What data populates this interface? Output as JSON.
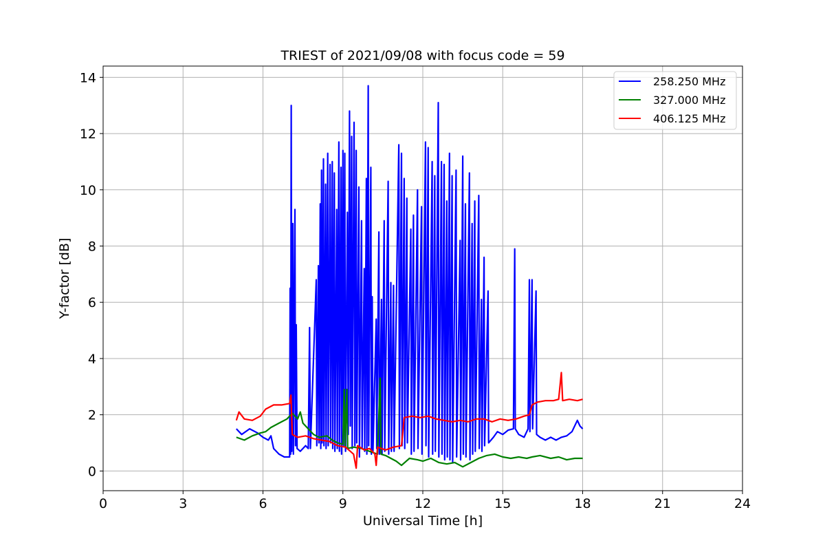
{
  "chart_data": {
    "type": "line",
    "title": "TRIEST of 2021/09/08 with focus code = 59",
    "xlabel": "Universal Time [h]",
    "ylabel": "Y-factor [dB]",
    "xlim": [
      0,
      24
    ],
    "ylim": [
      -0.7,
      14.4
    ],
    "xticks": [
      0,
      3,
      6,
      9,
      12,
      15,
      18,
      21,
      24
    ],
    "yticks": [
      0,
      2,
      4,
      6,
      8,
      10,
      12,
      14
    ],
    "grid": true,
    "legend_position": "top-right",
    "series": [
      {
        "name": "258.250 MHz",
        "color": "#0000ff",
        "points": [
          [
            5.0,
            1.5
          ],
          [
            5.2,
            1.3
          ],
          [
            5.5,
            1.5
          ],
          [
            5.8,
            1.35
          ],
          [
            6.0,
            1.2
          ],
          [
            6.2,
            1.1
          ],
          [
            6.3,
            1.25
          ],
          [
            6.4,
            0.8
          ],
          [
            6.6,
            0.6
          ],
          [
            6.8,
            0.5
          ],
          [
            7.0,
            0.5
          ],
          [
            7.02,
            6.5
          ],
          [
            7.04,
            0.6
          ],
          [
            7.06,
            13.0
          ],
          [
            7.08,
            0.7
          ],
          [
            7.12,
            8.8
          ],
          [
            7.14,
            0.6
          ],
          [
            7.2,
            9.3
          ],
          [
            7.22,
            0.9
          ],
          [
            7.25,
            5.2
          ],
          [
            7.28,
            0.8
          ],
          [
            7.4,
            0.7
          ],
          [
            7.6,
            0.9
          ],
          [
            7.7,
            0.8
          ],
          [
            7.75,
            5.1
          ],
          [
            7.78,
            0.8
          ],
          [
            8.0,
            6.8
          ],
          [
            8.02,
            0.9
          ],
          [
            8.08,
            7.3
          ],
          [
            8.1,
            1.0
          ],
          [
            8.15,
            9.5
          ],
          [
            8.17,
            0.8
          ],
          [
            8.2,
            10.7
          ],
          [
            8.22,
            1.0
          ],
          [
            8.27,
            11.1
          ],
          [
            8.29,
            0.9
          ],
          [
            8.35,
            10.2
          ],
          [
            8.37,
            0.8
          ],
          [
            8.43,
            11.3
          ],
          [
            8.45,
            0.9
          ],
          [
            8.52,
            10.9
          ],
          [
            8.54,
            1.0
          ],
          [
            8.6,
            11.0
          ],
          [
            8.62,
            0.8
          ],
          [
            8.68,
            10.6
          ],
          [
            8.7,
            0.7
          ],
          [
            8.77,
            9.3
          ],
          [
            8.79,
            0.8
          ],
          [
            8.85,
            11.7
          ],
          [
            8.87,
            0.7
          ],
          [
            8.93,
            10.8
          ],
          [
            8.95,
            0.6
          ],
          [
            9.0,
            11.4
          ],
          [
            9.02,
            0.9
          ],
          [
            9.07,
            11.3
          ],
          [
            9.1,
            0.7
          ],
          [
            9.17,
            9.2
          ],
          [
            9.2,
            1.3
          ],
          [
            9.25,
            12.8
          ],
          [
            9.28,
            1.6
          ],
          [
            9.33,
            11.9
          ],
          [
            9.35,
            0.8
          ],
          [
            9.42,
            12.4
          ],
          [
            9.45,
            0.9
          ],
          [
            9.5,
            11.4
          ],
          [
            9.52,
            1.0
          ],
          [
            9.6,
            10.1
          ],
          [
            9.62,
            0.5
          ],
          [
            9.7,
            8.9
          ],
          [
            9.72,
            0.8
          ],
          [
            9.8,
            7.2
          ],
          [
            9.82,
            0.7
          ],
          [
            9.88,
            10.4
          ],
          [
            9.9,
            0.6
          ],
          [
            9.95,
            13.7
          ],
          [
            9.97,
            0.9
          ],
          [
            10.05,
            10.8
          ],
          [
            10.07,
            0.6
          ],
          [
            10.1,
            6.2
          ],
          [
            10.13,
            0.7
          ],
          [
            10.25,
            5.4
          ],
          [
            10.27,
            0.8
          ],
          [
            10.35,
            8.5
          ],
          [
            10.37,
            0.6
          ],
          [
            10.45,
            6.1
          ],
          [
            10.47,
            0.6
          ],
          [
            10.55,
            8.9
          ],
          [
            10.57,
            0.7
          ],
          [
            10.7,
            10.3
          ],
          [
            10.72,
            0.6
          ],
          [
            10.8,
            6.7
          ],
          [
            10.82,
            0.7
          ],
          [
            10.9,
            6.6
          ],
          [
            10.92,
            0.7
          ],
          [
            11.1,
            11.6
          ],
          [
            11.12,
            0.8
          ],
          [
            11.2,
            11.3
          ],
          [
            11.22,
            0.9
          ],
          [
            11.3,
            10.4
          ],
          [
            11.32,
            0.8
          ],
          [
            11.4,
            9.7
          ],
          [
            11.42,
            1.0
          ],
          [
            11.55,
            8.6
          ],
          [
            11.57,
            0.6
          ],
          [
            11.65,
            9.1
          ],
          [
            11.67,
            0.7
          ],
          [
            11.8,
            10.0
          ],
          [
            11.82,
            0.8
          ],
          [
            11.95,
            9.4
          ],
          [
            11.97,
            0.6
          ],
          [
            12.1,
            11.7
          ],
          [
            12.12,
            0.9
          ],
          [
            12.2,
            11.5
          ],
          [
            12.22,
            0.5
          ],
          [
            12.35,
            11.0
          ],
          [
            12.37,
            0.6
          ],
          [
            12.45,
            10.5
          ],
          [
            12.47,
            0.7
          ],
          [
            12.58,
            13.1
          ],
          [
            12.6,
            0.5
          ],
          [
            12.7,
            11.0
          ],
          [
            12.72,
            0.6
          ],
          [
            12.8,
            10.9
          ],
          [
            12.82,
            0.4
          ],
          [
            12.9,
            9.6
          ],
          [
            12.92,
            0.5
          ],
          [
            13.0,
            11.3
          ],
          [
            13.02,
            0.4
          ],
          [
            13.1,
            10.5
          ],
          [
            13.12,
            0.3
          ],
          [
            13.25,
            10.7
          ],
          [
            13.27,
            0.5
          ],
          [
            13.4,
            8.2
          ],
          [
            13.42,
            0.4
          ],
          [
            13.5,
            11.2
          ],
          [
            13.52,
            0.6
          ],
          [
            13.6,
            9.5
          ],
          [
            13.62,
            0.5
          ],
          [
            13.75,
            10.6
          ],
          [
            13.77,
            0.4
          ],
          [
            13.85,
            8.8
          ],
          [
            13.87,
            0.6
          ],
          [
            13.95,
            9.6
          ],
          [
            13.97,
            0.7
          ],
          [
            14.1,
            9.8
          ],
          [
            14.12,
            0.8
          ],
          [
            14.2,
            6.1
          ],
          [
            14.22,
            0.7
          ],
          [
            14.3,
            7.6
          ],
          [
            14.32,
            0.9
          ],
          [
            14.45,
            6.4
          ],
          [
            14.47,
            1.0
          ],
          [
            14.65,
            1.2
          ],
          [
            14.8,
            1.4
          ],
          [
            15.0,
            1.3
          ],
          [
            15.2,
            1.45
          ],
          [
            15.4,
            1.5
          ],
          [
            15.45,
            7.9
          ],
          [
            15.47,
            1.5
          ],
          [
            15.6,
            1.3
          ],
          [
            15.8,
            1.2
          ],
          [
            15.95,
            1.5
          ],
          [
            16.0,
            6.8
          ],
          [
            16.02,
            1.4
          ],
          [
            16.1,
            6.8
          ],
          [
            16.12,
            1.5
          ],
          [
            16.25,
            6.4
          ],
          [
            16.27,
            1.3
          ],
          [
            16.4,
            1.2
          ],
          [
            16.6,
            1.1
          ],
          [
            16.8,
            1.2
          ],
          [
            17.0,
            1.1
          ],
          [
            17.2,
            1.2
          ],
          [
            17.4,
            1.25
          ],
          [
            17.6,
            1.4
          ],
          [
            17.8,
            1.8
          ],
          [
            17.9,
            1.6
          ],
          [
            18.0,
            1.5
          ]
        ]
      },
      {
        "name": "327.000 MHz",
        "color": "#008000",
        "points": [
          [
            5.0,
            1.2
          ],
          [
            5.3,
            1.1
          ],
          [
            5.6,
            1.25
          ],
          [
            5.9,
            1.35
          ],
          [
            6.1,
            1.4
          ],
          [
            6.3,
            1.55
          ],
          [
            6.6,
            1.7
          ],
          [
            6.9,
            1.85
          ],
          [
            7.1,
            2.05
          ],
          [
            7.3,
            1.85
          ],
          [
            7.4,
            2.1
          ],
          [
            7.5,
            1.7
          ],
          [
            7.7,
            1.5
          ],
          [
            7.9,
            1.3
          ],
          [
            8.1,
            1.2
          ],
          [
            8.4,
            1.25
          ],
          [
            8.6,
            1.1
          ],
          [
            8.8,
            1.0
          ],
          [
            9.0,
            0.95
          ],
          [
            9.05,
            2.9
          ],
          [
            9.08,
            0.9
          ],
          [
            9.15,
            2.9
          ],
          [
            9.18,
            0.8
          ],
          [
            9.4,
            0.85
          ],
          [
            9.7,
            0.8
          ],
          [
            10.0,
            0.7
          ],
          [
            10.3,
            0.6
          ],
          [
            10.4,
            3.3
          ],
          [
            10.43,
            0.6
          ],
          [
            10.6,
            0.55
          ],
          [
            10.8,
            0.45
          ],
          [
            11.0,
            0.35
          ],
          [
            11.2,
            0.2
          ],
          [
            11.5,
            0.45
          ],
          [
            11.8,
            0.4
          ],
          [
            12.0,
            0.35
          ],
          [
            12.3,
            0.45
          ],
          [
            12.6,
            0.3
          ],
          [
            12.9,
            0.25
          ],
          [
            13.2,
            0.3
          ],
          [
            13.5,
            0.15
          ],
          [
            13.8,
            0.3
          ],
          [
            14.1,
            0.45
          ],
          [
            14.4,
            0.55
          ],
          [
            14.7,
            0.6
          ],
          [
            15.0,
            0.5
          ],
          [
            15.3,
            0.45
          ],
          [
            15.6,
            0.5
          ],
          [
            15.9,
            0.45
          ],
          [
            16.1,
            0.5
          ],
          [
            16.4,
            0.55
          ],
          [
            16.8,
            0.45
          ],
          [
            17.1,
            0.5
          ],
          [
            17.4,
            0.4
          ],
          [
            17.7,
            0.45
          ],
          [
            18.0,
            0.45
          ]
        ]
      },
      {
        "name": "406.125 MHz",
        "color": "#ff0000",
        "points": [
          [
            5.0,
            1.8
          ],
          [
            5.1,
            2.1
          ],
          [
            5.3,
            1.85
          ],
          [
            5.6,
            1.8
          ],
          [
            5.9,
            1.95
          ],
          [
            6.1,
            2.2
          ],
          [
            6.4,
            2.35
          ],
          [
            6.7,
            2.35
          ],
          [
            7.0,
            2.4
          ],
          [
            7.05,
            2.7
          ],
          [
            7.1,
            1.3
          ],
          [
            7.3,
            1.2
          ],
          [
            7.6,
            1.25
          ],
          [
            7.9,
            1.15
          ],
          [
            8.2,
            1.1
          ],
          [
            8.5,
            1.05
          ],
          [
            8.8,
            0.9
          ],
          [
            9.1,
            0.85
          ],
          [
            9.4,
            0.6
          ],
          [
            9.5,
            0.1
          ],
          [
            9.55,
            0.9
          ],
          [
            9.8,
            0.75
          ],
          [
            10.0,
            0.8
          ],
          [
            10.2,
            0.6
          ],
          [
            10.25,
            0.2
          ],
          [
            10.3,
            0.85
          ],
          [
            10.6,
            0.75
          ],
          [
            10.9,
            0.85
          ],
          [
            11.2,
            0.9
          ],
          [
            11.3,
            1.9
          ],
          [
            11.6,
            1.95
          ],
          [
            11.9,
            1.9
          ],
          [
            12.2,
            1.95
          ],
          [
            12.5,
            1.85
          ],
          [
            12.8,
            1.8
          ],
          [
            13.1,
            1.75
          ],
          [
            13.4,
            1.8
          ],
          [
            13.7,
            1.75
          ],
          [
            14.0,
            1.85
          ],
          [
            14.3,
            1.85
          ],
          [
            14.6,
            1.75
          ],
          [
            14.9,
            1.85
          ],
          [
            15.2,
            1.8
          ],
          [
            15.5,
            1.85
          ],
          [
            15.8,
            1.95
          ],
          [
            16.0,
            2.0
          ],
          [
            16.1,
            2.35
          ],
          [
            16.3,
            2.45
          ],
          [
            16.6,
            2.5
          ],
          [
            16.9,
            2.5
          ],
          [
            17.1,
            2.55
          ],
          [
            17.2,
            3.5
          ],
          [
            17.25,
            2.5
          ],
          [
            17.5,
            2.55
          ],
          [
            17.8,
            2.5
          ],
          [
            18.0,
            2.55
          ]
        ]
      }
    ]
  }
}
